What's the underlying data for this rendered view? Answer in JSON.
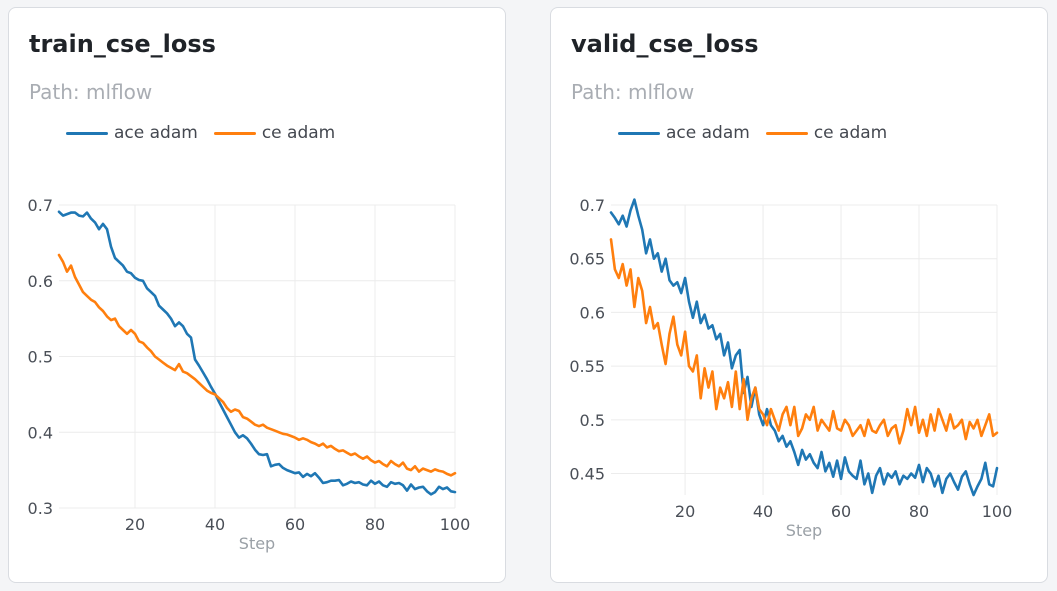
{
  "colors": {
    "series_0": "#1f77b4",
    "series_1": "#ff7f0e",
    "grid": "#ececec"
  },
  "chart_data": [
    {
      "type": "line",
      "title": "train_cse_loss",
      "subtitle": "Path: mlflow",
      "xlabel": "Step",
      "ylabel": "",
      "xlim": [
        1,
        100
      ],
      "ylim": [
        0.3,
        0.7
      ],
      "xticks": [
        20,
        40,
        60,
        80,
        100
      ],
      "xtick_labels": [
        "20",
        "40",
        "60",
        "80",
        "100"
      ],
      "yticks": [
        0.3,
        0.4,
        0.5,
        0.6,
        0.7
      ],
      "ytick_labels": [
        "0.3",
        "0.4",
        "0.5",
        "0.6",
        "0.7"
      ],
      "grid": true,
      "legend_position": "top",
      "series": [
        {
          "name": "ace adam",
          "color": "#1f77b4",
          "x": [
            1,
            2,
            3,
            4,
            5,
            6,
            7,
            8,
            9,
            10,
            11,
            12,
            13,
            14,
            15,
            16,
            17,
            18,
            19,
            20,
            21,
            22,
            23,
            24,
            25,
            26,
            27,
            28,
            29,
            30,
            31,
            32,
            33,
            34,
            35,
            36,
            37,
            38,
            39,
            40,
            41,
            42,
            43,
            44,
            45,
            46,
            47,
            48,
            49,
            50,
            51,
            52,
            53,
            54,
            55,
            56,
            57,
            58,
            59,
            60,
            61,
            62,
            63,
            64,
            65,
            66,
            67,
            68,
            69,
            70,
            71,
            72,
            73,
            74,
            75,
            76,
            77,
            78,
            79,
            80,
            81,
            82,
            83,
            84,
            85,
            86,
            87,
            88,
            89,
            90,
            91,
            92,
            93,
            94,
            95,
            96,
            97,
            98,
            99,
            100
          ],
          "values": [
            0.691,
            0.686,
            0.688,
            0.69,
            0.69,
            0.686,
            0.685,
            0.69,
            0.682,
            0.677,
            0.668,
            0.675,
            0.668,
            0.645,
            0.63,
            0.625,
            0.62,
            0.612,
            0.61,
            0.604,
            0.601,
            0.6,
            0.59,
            0.585,
            0.58,
            0.567,
            0.562,
            0.557,
            0.55,
            0.54,
            0.545,
            0.54,
            0.53,
            0.525,
            0.496,
            0.488,
            0.479,
            0.47,
            0.46,
            0.451,
            0.44,
            0.43,
            0.42,
            0.41,
            0.4,
            0.393,
            0.396,
            0.392,
            0.385,
            0.377,
            0.371,
            0.37,
            0.371,
            0.355,
            0.357,
            0.358,
            0.353,
            0.35,
            0.348,
            0.346,
            0.347,
            0.341,
            0.345,
            0.342,
            0.346,
            0.34,
            0.333,
            0.334,
            0.336,
            0.336,
            0.337,
            0.33,
            0.332,
            0.335,
            0.333,
            0.334,
            0.331,
            0.33,
            0.336,
            0.332,
            0.335,
            0.33,
            0.328,
            0.334,
            0.332,
            0.333,
            0.33,
            0.323,
            0.331,
            0.325,
            0.327,
            0.328,
            0.322,
            0.318,
            0.321,
            0.328,
            0.325,
            0.327,
            0.322,
            0.321
          ]
        },
        {
          "name": "ce adam",
          "color": "#ff7f0e",
          "x": [
            1,
            2,
            3,
            4,
            5,
            6,
            7,
            8,
            9,
            10,
            11,
            12,
            13,
            14,
            15,
            16,
            17,
            18,
            19,
            20,
            21,
            22,
            23,
            24,
            25,
            26,
            27,
            28,
            29,
            30,
            31,
            32,
            33,
            34,
            35,
            36,
            37,
            38,
            39,
            40,
            41,
            42,
            43,
            44,
            45,
            46,
            47,
            48,
            49,
            50,
            51,
            52,
            53,
            54,
            55,
            56,
            57,
            58,
            59,
            60,
            61,
            62,
            63,
            64,
            65,
            66,
            67,
            68,
            69,
            70,
            71,
            72,
            73,
            74,
            75,
            76,
            77,
            78,
            79,
            80,
            81,
            82,
            83,
            84,
            85,
            86,
            87,
            88,
            89,
            90,
            91,
            92,
            93,
            94,
            95,
            96,
            97,
            98,
            99,
            100
          ],
          "values": [
            0.634,
            0.625,
            0.612,
            0.62,
            0.605,
            0.595,
            0.585,
            0.58,
            0.575,
            0.572,
            0.565,
            0.56,
            0.553,
            0.548,
            0.55,
            0.54,
            0.535,
            0.53,
            0.535,
            0.53,
            0.52,
            0.518,
            0.512,
            0.507,
            0.5,
            0.496,
            0.492,
            0.488,
            0.485,
            0.482,
            0.49,
            0.48,
            0.478,
            0.474,
            0.47,
            0.465,
            0.46,
            0.455,
            0.452,
            0.45,
            0.445,
            0.44,
            0.432,
            0.427,
            0.43,
            0.428,
            0.42,
            0.418,
            0.414,
            0.41,
            0.408,
            0.41,
            0.406,
            0.404,
            0.402,
            0.4,
            0.398,
            0.397,
            0.395,
            0.393,
            0.39,
            0.392,
            0.39,
            0.387,
            0.385,
            0.382,
            0.385,
            0.38,
            0.382,
            0.378,
            0.375,
            0.376,
            0.373,
            0.37,
            0.372,
            0.368,
            0.365,
            0.368,
            0.363,
            0.36,
            0.362,
            0.358,
            0.355,
            0.362,
            0.358,
            0.355,
            0.36,
            0.352,
            0.35,
            0.355,
            0.348,
            0.352,
            0.35,
            0.348,
            0.351,
            0.349,
            0.348,
            0.345,
            0.343,
            0.346
          ]
        }
      ]
    },
    {
      "type": "line",
      "title": "valid_cse_loss",
      "subtitle": "Path: mlflow",
      "xlabel": "Step",
      "ylabel": "",
      "xlim": [
        1,
        100
      ],
      "ylim": [
        0.43,
        0.7
      ],
      "xticks": [
        20,
        40,
        60,
        80,
        100
      ],
      "xtick_labels": [
        "20",
        "40",
        "60",
        "80",
        "100"
      ],
      "yticks": [
        0.45,
        0.5,
        0.55,
        0.6,
        0.65,
        0.7
      ],
      "ytick_labels": [
        "0.45",
        "0.5",
        "0.55",
        "0.6",
        "0.65",
        "0.7"
      ],
      "grid": true,
      "legend_position": "top",
      "series": [
        {
          "name": "ace adam",
          "color": "#1f77b4",
          "x": [
            1,
            2,
            3,
            4,
            5,
            6,
            7,
            8,
            9,
            10,
            11,
            12,
            13,
            14,
            15,
            16,
            17,
            18,
            19,
            20,
            21,
            22,
            23,
            24,
            25,
            26,
            27,
            28,
            29,
            30,
            31,
            32,
            33,
            34,
            35,
            36,
            37,
            38,
            39,
            40,
            41,
            42,
            43,
            44,
            45,
            46,
            47,
            48,
            49,
            50,
            51,
            52,
            53,
            54,
            55,
            56,
            57,
            58,
            59,
            60,
            61,
            62,
            63,
            64,
            65,
            66,
            67,
            68,
            69,
            70,
            71,
            72,
            73,
            74,
            75,
            76,
            77,
            78,
            79,
            80,
            81,
            82,
            83,
            84,
            85,
            86,
            87,
            88,
            89,
            90,
            91,
            92,
            93,
            94,
            95,
            96,
            97,
            98,
            99,
            100
          ],
          "values": [
            0.693,
            0.688,
            0.682,
            0.69,
            0.68,
            0.695,
            0.705,
            0.69,
            0.677,
            0.655,
            0.668,
            0.65,
            0.655,
            0.638,
            0.65,
            0.63,
            0.625,
            0.628,
            0.618,
            0.632,
            0.61,
            0.595,
            0.61,
            0.59,
            0.598,
            0.585,
            0.588,
            0.575,
            0.58,
            0.56,
            0.572,
            0.548,
            0.56,
            0.565,
            0.525,
            0.54,
            0.512,
            0.53,
            0.505,
            0.495,
            0.51,
            0.495,
            0.49,
            0.48,
            0.485,
            0.475,
            0.48,
            0.47,
            0.458,
            0.472,
            0.463,
            0.468,
            0.46,
            0.455,
            0.47,
            0.452,
            0.46,
            0.447,
            0.462,
            0.445,
            0.465,
            0.452,
            0.448,
            0.445,
            0.462,
            0.44,
            0.45,
            0.432,
            0.448,
            0.455,
            0.44,
            0.45,
            0.446,
            0.452,
            0.44,
            0.448,
            0.445,
            0.45,
            0.446,
            0.458,
            0.442,
            0.455,
            0.45,
            0.438,
            0.448,
            0.432,
            0.445,
            0.45,
            0.442,
            0.435,
            0.447,
            0.452,
            0.44,
            0.43,
            0.438,
            0.445,
            0.46,
            0.44,
            0.438,
            0.455
          ]
        },
        {
          "name": "ce adam",
          "color": "#ff7f0e",
          "x": [
            1,
            2,
            3,
            4,
            5,
            6,
            7,
            8,
            9,
            10,
            11,
            12,
            13,
            14,
            15,
            16,
            17,
            18,
            19,
            20,
            21,
            22,
            23,
            24,
            25,
            26,
            27,
            28,
            29,
            30,
            31,
            32,
            33,
            34,
            35,
            36,
            37,
            38,
            39,
            40,
            41,
            42,
            43,
            44,
            45,
            46,
            47,
            48,
            49,
            50,
            51,
            52,
            53,
            54,
            55,
            56,
            57,
            58,
            59,
            60,
            61,
            62,
            63,
            64,
            65,
            66,
            67,
            68,
            69,
            70,
            71,
            72,
            73,
            74,
            75,
            76,
            77,
            78,
            79,
            80,
            81,
            82,
            83,
            84,
            85,
            86,
            87,
            88,
            89,
            90,
            91,
            92,
            93,
            94,
            95,
            96,
            97,
            98,
            99,
            100
          ],
          "values": [
            0.668,
            0.64,
            0.632,
            0.645,
            0.625,
            0.64,
            0.605,
            0.632,
            0.62,
            0.59,
            0.605,
            0.585,
            0.59,
            0.57,
            0.552,
            0.58,
            0.596,
            0.57,
            0.56,
            0.582,
            0.55,
            0.545,
            0.56,
            0.52,
            0.548,
            0.53,
            0.545,
            0.51,
            0.53,
            0.52,
            0.535,
            0.512,
            0.545,
            0.51,
            0.538,
            0.5,
            0.52,
            0.53,
            0.51,
            0.505,
            0.495,
            0.51,
            0.5,
            0.49,
            0.505,
            0.512,
            0.495,
            0.512,
            0.485,
            0.492,
            0.505,
            0.5,
            0.512,
            0.49,
            0.5,
            0.495,
            0.49,
            0.508,
            0.492,
            0.49,
            0.5,
            0.495,
            0.485,
            0.49,
            0.495,
            0.485,
            0.5,
            0.49,
            0.488,
            0.495,
            0.5,
            0.485,
            0.492,
            0.495,
            0.478,
            0.49,
            0.51,
            0.495,
            0.512,
            0.488,
            0.5,
            0.485,
            0.505,
            0.49,
            0.51,
            0.5,
            0.49,
            0.505,
            0.492,
            0.495,
            0.5,
            0.482,
            0.498,
            0.492,
            0.5,
            0.485,
            0.495,
            0.505,
            0.485,
            0.488
          ]
        }
      ]
    }
  ]
}
